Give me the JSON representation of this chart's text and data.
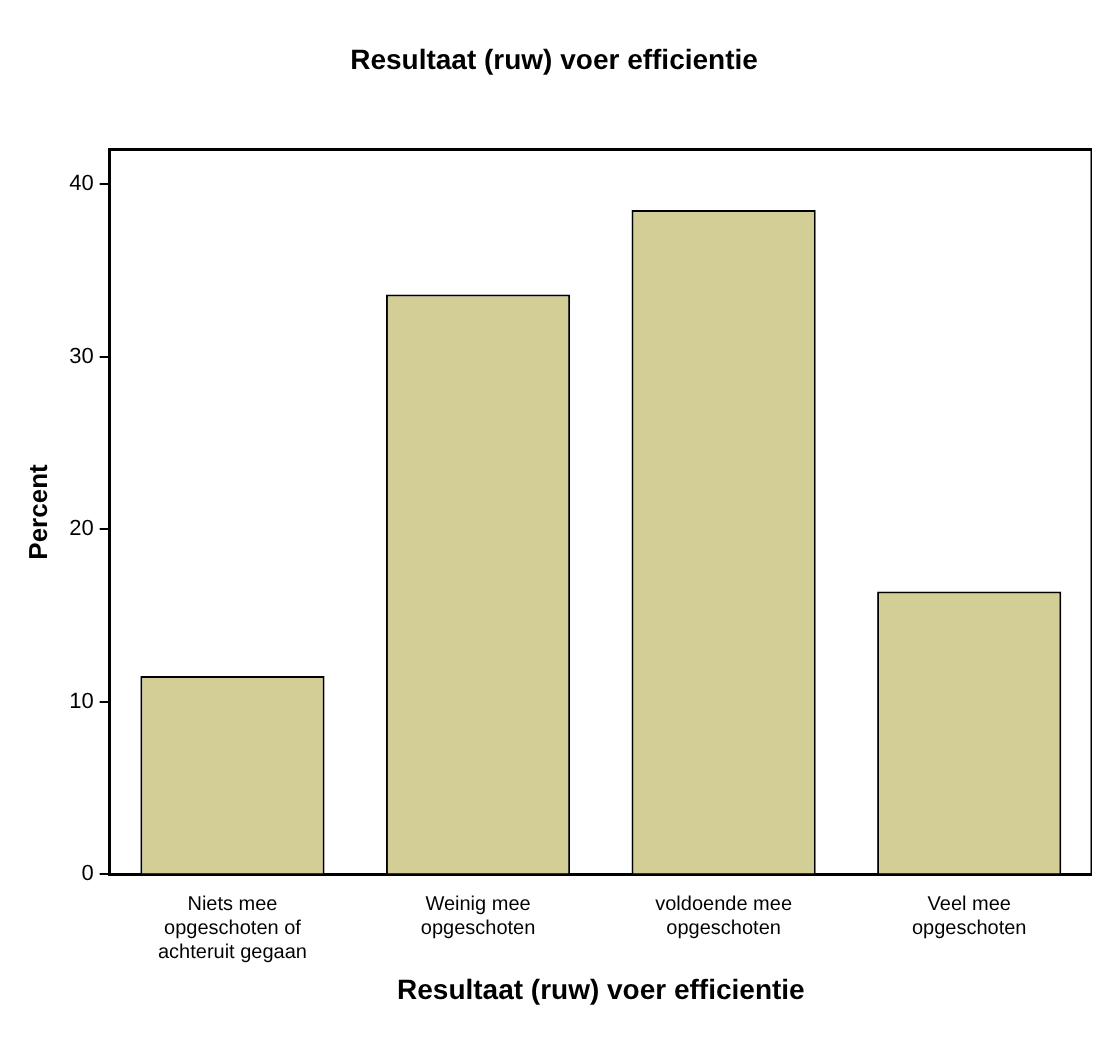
{
  "chart_data": {
    "type": "bar",
    "title": "Resultaat (ruw) voer efficientie",
    "xlabel": "Resultaat (ruw) voer efficientie",
    "ylabel": "Percent",
    "categories": [
      "Niets mee opgeschoten of achteruit gegaan",
      "Weinig mee opgeschoten",
      "voldoende mee opgeschoten",
      "Veel mee opgeschoten"
    ],
    "values": [
      11.5,
      33.6,
      38.5,
      16.4
    ],
    "color": "#d3cd96",
    "ylim": [
      0,
      42
    ],
    "yticks": [
      0,
      10,
      20,
      30,
      40
    ],
    "grid": false,
    "legend": false
  }
}
